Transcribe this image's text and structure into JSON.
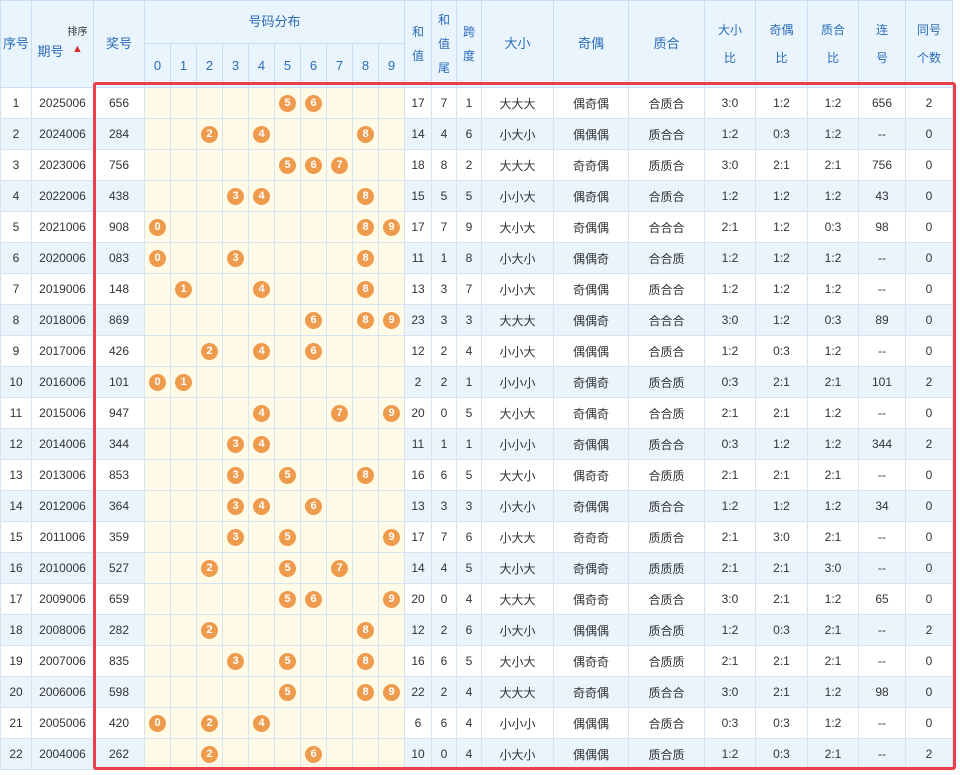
{
  "header": {
    "seq": "序号",
    "period": "期号",
    "sort_label": "排序",
    "prize": "奖号",
    "distribution": "号码分布",
    "digits": [
      "0",
      "1",
      "2",
      "3",
      "4",
      "5",
      "6",
      "7",
      "8",
      "9"
    ],
    "sum": "和值",
    "sum_tail": "和值尾",
    "span": "跨度",
    "size": "大小",
    "parity": "奇偶",
    "prime": "质合",
    "size_ratio": "大小比",
    "parity_ratio": "奇偶比",
    "prime_ratio": "质合比",
    "consecutive": "连号",
    "same_count": "同号个数"
  },
  "accent_color": "#ef9b4d",
  "frame_color": "#e8414b",
  "rows": [
    {
      "seq": "1",
      "period": "2025006",
      "prize": "656",
      "balls": [
        5,
        6
      ],
      "sum": "17",
      "tail": "7",
      "span": "1",
      "size": "大大大",
      "parity": "偶奇偶",
      "prime": "合质合",
      "sr": "3:0",
      "pr": "1:2",
      "qr": "1:2",
      "cons": "656",
      "same": "2"
    },
    {
      "seq": "2",
      "period": "2024006",
      "prize": "284",
      "balls": [
        2,
        4,
        8
      ],
      "sum": "14",
      "tail": "4",
      "span": "6",
      "size": "小大小",
      "parity": "偶偶偶",
      "prime": "质合合",
      "sr": "1:2",
      "pr": "0:3",
      "qr": "1:2",
      "cons": "--",
      "same": "0"
    },
    {
      "seq": "3",
      "period": "2023006",
      "prize": "756",
      "balls": [
        5,
        6,
        7
      ],
      "sum": "18",
      "tail": "8",
      "span": "2",
      "size": "大大大",
      "parity": "奇奇偶",
      "prime": "质质合",
      "sr": "3:0",
      "pr": "2:1",
      "qr": "2:1",
      "cons": "756",
      "same": "0"
    },
    {
      "seq": "4",
      "period": "2022006",
      "prize": "438",
      "balls": [
        3,
        4,
        8
      ],
      "sum": "15",
      "tail": "5",
      "span": "5",
      "size": "小小大",
      "parity": "偶奇偶",
      "prime": "合质合",
      "sr": "1:2",
      "pr": "1:2",
      "qr": "1:2",
      "cons": "43",
      "same": "0"
    },
    {
      "seq": "5",
      "period": "2021006",
      "prize": "908",
      "balls": [
        0,
        8,
        9
      ],
      "sum": "17",
      "tail": "7",
      "span": "9",
      "size": "大小大",
      "parity": "奇偶偶",
      "prime": "合合合",
      "sr": "2:1",
      "pr": "1:2",
      "qr": "0:3",
      "cons": "98",
      "same": "0"
    },
    {
      "seq": "6",
      "period": "2020006",
      "prize": "083",
      "balls": [
        0,
        3,
        8
      ],
      "sum": "11",
      "tail": "1",
      "span": "8",
      "size": "小大小",
      "parity": "偶偶奇",
      "prime": "合合质",
      "sr": "1:2",
      "pr": "1:2",
      "qr": "1:2",
      "cons": "--",
      "same": "0"
    },
    {
      "seq": "7",
      "period": "2019006",
      "prize": "148",
      "balls": [
        1,
        4,
        8
      ],
      "sum": "13",
      "tail": "3",
      "span": "7",
      "size": "小小大",
      "parity": "奇偶偶",
      "prime": "质合合",
      "sr": "1:2",
      "pr": "1:2",
      "qr": "1:2",
      "cons": "--",
      "same": "0"
    },
    {
      "seq": "8",
      "period": "2018006",
      "prize": "869",
      "balls": [
        6,
        8,
        9
      ],
      "sum": "23",
      "tail": "3",
      "span": "3",
      "size": "大大大",
      "parity": "偶偶奇",
      "prime": "合合合",
      "sr": "3:0",
      "pr": "1:2",
      "qr": "0:3",
      "cons": "89",
      "same": "0"
    },
    {
      "seq": "9",
      "period": "2017006",
      "prize": "426",
      "balls": [
        2,
        4,
        6
      ],
      "sum": "12",
      "tail": "2",
      "span": "4",
      "size": "小小大",
      "parity": "偶偶偶",
      "prime": "合质合",
      "sr": "1:2",
      "pr": "0:3",
      "qr": "1:2",
      "cons": "--",
      "same": "0"
    },
    {
      "seq": "10",
      "period": "2016006",
      "prize": "101",
      "balls": [
        0,
        1
      ],
      "sum": "2",
      "tail": "2",
      "span": "1",
      "size": "小小小",
      "parity": "奇偶奇",
      "prime": "质合质",
      "sr": "0:3",
      "pr": "2:1",
      "qr": "2:1",
      "cons": "101",
      "same": "2"
    },
    {
      "seq": "11",
      "period": "2015006",
      "prize": "947",
      "balls": [
        4,
        7,
        9
      ],
      "sum": "20",
      "tail": "0",
      "span": "5",
      "size": "大小大",
      "parity": "奇偶奇",
      "prime": "合合质",
      "sr": "2:1",
      "pr": "2:1",
      "qr": "1:2",
      "cons": "--",
      "same": "0"
    },
    {
      "seq": "12",
      "period": "2014006",
      "prize": "344",
      "balls": [
        3,
        4
      ],
      "sum": "11",
      "tail": "1",
      "span": "1",
      "size": "小小小",
      "parity": "奇偶偶",
      "prime": "质合合",
      "sr": "0:3",
      "pr": "1:2",
      "qr": "1:2",
      "cons": "344",
      "same": "2"
    },
    {
      "seq": "13",
      "period": "2013006",
      "prize": "853",
      "balls": [
        3,
        5,
        8
      ],
      "sum": "16",
      "tail": "6",
      "span": "5",
      "size": "大大小",
      "parity": "偶奇奇",
      "prime": "合质质",
      "sr": "2:1",
      "pr": "2:1",
      "qr": "2:1",
      "cons": "--",
      "same": "0"
    },
    {
      "seq": "14",
      "period": "2012006",
      "prize": "364",
      "balls": [
        3,
        4,
        6
      ],
      "sum": "13",
      "tail": "3",
      "span": "3",
      "size": "小大小",
      "parity": "奇偶偶",
      "prime": "质合合",
      "sr": "1:2",
      "pr": "1:2",
      "qr": "1:2",
      "cons": "34",
      "same": "0"
    },
    {
      "seq": "15",
      "period": "2011006",
      "prize": "359",
      "balls": [
        3,
        5,
        9
      ],
      "sum": "17",
      "tail": "7",
      "span": "6",
      "size": "小大大",
      "parity": "奇奇奇",
      "prime": "质质合",
      "sr": "2:1",
      "pr": "3:0",
      "qr": "2:1",
      "cons": "--",
      "same": "0"
    },
    {
      "seq": "16",
      "period": "2010006",
      "prize": "527",
      "balls": [
        2,
        5,
        7
      ],
      "sum": "14",
      "tail": "4",
      "span": "5",
      "size": "大小大",
      "parity": "奇偶奇",
      "prime": "质质质",
      "sr": "2:1",
      "pr": "2:1",
      "qr": "3:0",
      "cons": "--",
      "same": "0"
    },
    {
      "seq": "17",
      "period": "2009006",
      "prize": "659",
      "balls": [
        5,
        6,
        9
      ],
      "sum": "20",
      "tail": "0",
      "span": "4",
      "size": "大大大",
      "parity": "偶奇奇",
      "prime": "合质合",
      "sr": "3:0",
      "pr": "2:1",
      "qr": "1:2",
      "cons": "65",
      "same": "0"
    },
    {
      "seq": "18",
      "period": "2008006",
      "prize": "282",
      "balls": [
        2,
        8
      ],
      "sum": "12",
      "tail": "2",
      "span": "6",
      "size": "小大小",
      "parity": "偶偶偶",
      "prime": "质合质",
      "sr": "1:2",
      "pr": "0:3",
      "qr": "2:1",
      "cons": "--",
      "same": "2"
    },
    {
      "seq": "19",
      "period": "2007006",
      "prize": "835",
      "balls": [
        3,
        5,
        8
      ],
      "sum": "16",
      "tail": "6",
      "span": "5",
      "size": "大小大",
      "parity": "偶奇奇",
      "prime": "合质质",
      "sr": "2:1",
      "pr": "2:1",
      "qr": "2:1",
      "cons": "--",
      "same": "0"
    },
    {
      "seq": "20",
      "period": "2006006",
      "prize": "598",
      "balls": [
        5,
        8,
        9
      ],
      "sum": "22",
      "tail": "2",
      "span": "4",
      "size": "大大大",
      "parity": "奇奇偶",
      "prime": "质合合",
      "sr": "3:0",
      "pr": "2:1",
      "qr": "1:2",
      "cons": "98",
      "same": "0"
    },
    {
      "seq": "21",
      "period": "2005006",
      "prize": "420",
      "balls": [
        0,
        2,
        4
      ],
      "sum": "6",
      "tail": "6",
      "span": "4",
      "size": "小小小",
      "parity": "偶偶偶",
      "prime": "合质合",
      "sr": "0:3",
      "pr": "0:3",
      "qr": "1:2",
      "cons": "--",
      "same": "0"
    },
    {
      "seq": "22",
      "period": "2004006",
      "prize": "262",
      "balls": [
        2,
        6
      ],
      "sum": "10",
      "tail": "0",
      "span": "4",
      "size": "小大小",
      "parity": "偶偶偶",
      "prime": "质合质",
      "sr": "1:2",
      "pr": "0:3",
      "qr": "2:1",
      "cons": "--",
      "same": "2"
    }
  ]
}
